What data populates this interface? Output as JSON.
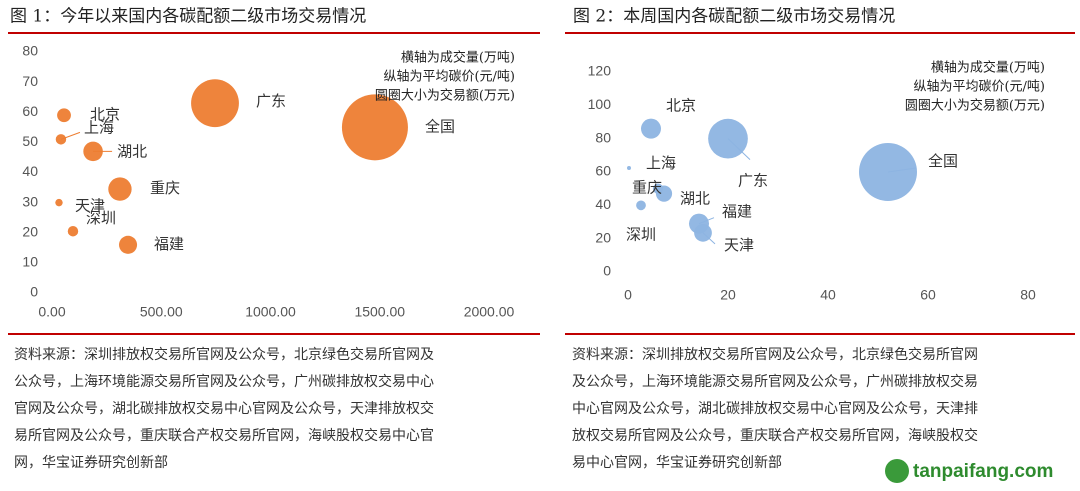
{
  "chart_data": [
    {
      "type": "bubble",
      "title": "图 1：今年以来国内各碳配额二级市场交易情况",
      "annotations": [
        "横轴为成交量(万吨)",
        "纵轴为平均碳价(元/吨)",
        "圆圈大小为交易额(万元)"
      ],
      "labels": [
        "北京",
        "上海",
        "湖北",
        "重庆",
        "天津",
        "深圳",
        "福建",
        "广东",
        "全国"
      ],
      "x": [
        55,
        41,
        188,
        311,
        32,
        96,
        348,
        746,
        1478
      ],
      "values": [
        59,
        51,
        47,
        34.5,
        30,
        20.5,
        16,
        63,
        55
      ],
      "sizes": [
        3500,
        2000,
        7000,
        10000,
        1000,
        2000,
        6000,
        42000,
        80000
      ],
      "color": "#ED7D31",
      "xlim": [
        0,
        2000
      ],
      "xticks": [
        {
          "value": 0,
          "label": "0.00"
        },
        {
          "value": 500,
          "label": "500.00"
        },
        {
          "value": 1000,
          "label": "1000.00"
        },
        {
          "value": 1500,
          "label": "1500.00"
        },
        {
          "value": 2000,
          "label": "2000.00"
        }
      ],
      "ylim": [
        0,
        80
      ],
      "yticks": [
        0,
        10,
        20,
        30,
        40,
        50,
        60,
        70,
        80
      ],
      "grid": false
    },
    {
      "type": "bubble",
      "title": "图 2：本周国内各碳配额二级市场交易情况",
      "annotations": [
        "横轴为成交量(万吨)",
        "纵轴为平均碳价(元/吨)",
        "圆圈大小为交易额(万元)"
      ],
      "labels": [
        "北京",
        "上海",
        "重庆",
        "湖北",
        "深圳",
        "广东",
        "全国",
        "福建",
        "天津"
      ],
      "x": [
        4.6,
        0.2,
        6,
        7.2,
        2.6,
        20,
        52,
        14.2,
        15
      ],
      "values": [
        86,
        62.4,
        50,
        47,
        40,
        80,
        60,
        29,
        23.5
      ],
      "sizes": [
        380,
        15,
        100,
        250,
        90,
        1500,
        3200,
        380,
        300
      ],
      "color": "#8DB4E2",
      "xlim": [
        0,
        80
      ],
      "xticks": [
        0,
        20,
        40,
        60,
        80
      ],
      "ylim": [
        0,
        120
      ],
      "yticks": [
        0,
        20,
        40,
        60,
        80,
        100,
        120
      ],
      "grid": false
    }
  ],
  "sources": [
    [
      "资料来源：深圳排放权交易所官网及公众号，北京绿色交易所官网及",
      "公众号，上海环境能源交易所官网及公众号，广州碳排放权交易中心",
      "官网及公众号，湖北碳排放权交易中心官网及公众号，天津排放权交",
      "易所官网及公众号，重庆联合产权交易所官网，海峡股权交易中心官",
      "网，华宝证券研究创新部"
    ],
    [
      "资料来源：深圳排放权交易所官网及公众号，北京绿色交易所官网",
      "及公众号，上海环境能源交易所官网及公众号，广州碳排放权交易",
      "中心官网及公众号，湖北碳排放权交易中心官网及公众号，天津排",
      "放权交易所官网及公众号，重庆联合产权交易所官网，海峡股权交",
      "易中心官网，华宝证券研究创新部"
    ]
  ],
  "watermark": "tanpaifang.com"
}
